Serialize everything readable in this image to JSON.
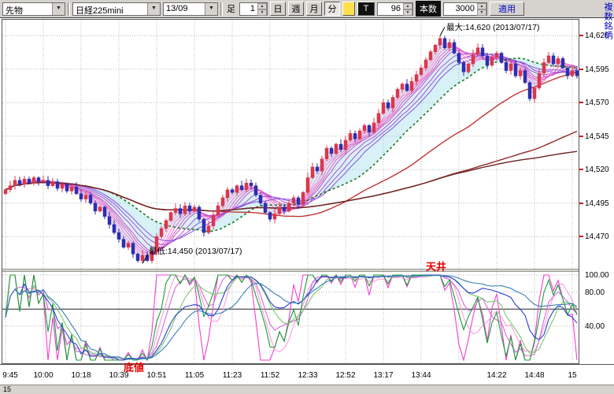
{
  "toolbar": {
    "category": {
      "value": "先物"
    },
    "symbol": {
      "value": "日経225mini"
    },
    "month": {
      "value": "13/09"
    },
    "bar_label": "足",
    "interval_value": "1",
    "period_buttons": [
      "日",
      "週",
      "月",
      "分"
    ],
    "tick_button": "T",
    "bars_value": "96",
    "count_label": "本数",
    "count_value": "3000",
    "apply_label": "適用",
    "multi_symbol": "複数銘柄"
  },
  "annotations": {
    "max_label": "最大:14,620 (2013/07/17)",
    "min_label": "最低:14,450 (2013/07/17)",
    "ceiling_label": "天井",
    "bottom_label": "底値"
  },
  "bottom": {
    "left_label": "15"
  },
  "colors": {
    "toolbar_bg": "#d6d3ce",
    "link_blue": "#0000c8",
    "annotation_red": "#e80000",
    "grid_gray": "#b8b8b8"
  },
  "chart_data": {
    "type": "candlestick+oscillator",
    "instrument": "日経225mini 13/09 1分足",
    "x_labels": [
      "9:45",
      "10:00",
      "10:18",
      "10:39",
      "10:51",
      "11:05",
      "11:23",
      "11:52",
      "12:33",
      "12:52",
      "13:17",
      "13:44",
      "",
      "14:22",
      "14:48",
      "15"
    ],
    "price_axis_labels": [
      "14,620",
      "14,595",
      "14,570",
      "14,545",
      "14,520",
      "14,495",
      "14,470"
    ],
    "price_axis_values": [
      14620,
      14595,
      14570,
      14545,
      14520,
      14495,
      14470
    ],
    "ylim": [
      14446,
      14632
    ],
    "grid": true,
    "closes": [
      14505,
      14508,
      14512,
      14509,
      14513,
      14510,
      14514,
      14511,
      14512,
      14508,
      14511,
      14506,
      14509,
      14504,
      14507,
      14502,
      14498,
      14501,
      14495,
      14489,
      14492,
      14485,
      14479,
      14473,
      14468,
      14462,
      14465,
      14457,
      14452,
      14456,
      14452,
      14459,
      14470,
      14476,
      14482,
      14488,
      14491,
      14487,
      14493,
      14489,
      14492,
      14483,
      14473,
      14478,
      14486,
      14493,
      14499,
      14505,
      14503,
      14508,
      14505,
      14510,
      14508,
      14501,
      14495,
      14488,
      14483,
      14487,
      14492,
      14489,
      14495,
      14499,
      14494,
      14503,
      14514,
      14522,
      14519,
      14528,
      14536,
      14532,
      14539,
      14535,
      14542,
      14547,
      14543,
      14549,
      14553,
      14548,
      14555,
      14562,
      14570,
      14566,
      14574,
      14580,
      14584,
      14579,
      14586,
      14591,
      14596,
      14602,
      14608,
      14613,
      14618,
      14611,
      14615,
      14607,
      14600,
      14593,
      14599,
      14606,
      14611,
      14605,
      14598,
      14604,
      14607,
      14600,
      14594,
      14599,
      14590,
      14594,
      14585,
      14573,
      14581,
      14592,
      14600,
      14605,
      14599,
      14603,
      14596,
      14590,
      14594,
      14590
    ],
    "markers": {
      "max": {
        "index": 92,
        "price": 14620,
        "label": "最大:14,620 (2013/07/17)"
      },
      "min": {
        "index": 29,
        "price": 14450,
        "label": "最低:14,450 (2013/07/17)"
      }
    },
    "candle_up_color": "#d8384c",
    "candle_down_color": "#2c2fb0",
    "ma_ribbon": {
      "periods": [
        2,
        3,
        4,
        5,
        6,
        7,
        8,
        10,
        12,
        14
      ],
      "colors": [
        "#ffc4eb",
        "#ffade3",
        "#ff96db",
        "#f77fd3",
        "#ee69cb",
        "#e058c5",
        "#cf4fca",
        "#b84fd3",
        "#a14fdb",
        "#8b4fe2"
      ]
    },
    "ma_green": {
      "period": 22,
      "color": "#1d7a1d",
      "style": "dotted"
    },
    "ma_slow": [
      {
        "period": 45,
        "color": "#c23333"
      },
      {
        "period": 90,
        "color": "#8f2a2a"
      },
      {
        "period": 170,
        "color": "#6e2222"
      }
    ],
    "cloud_color": "rgba(140,215,230,0.35)",
    "oscillator": {
      "axis_labels": [
        "100.00",
        "80.00",
        "40.00"
      ],
      "axis_values": [
        100,
        80,
        40
      ],
      "solid_level": 60,
      "lines": [
        {
          "period": 9,
          "smooth": 1,
          "color": "#f23fd3"
        },
        {
          "period": 9,
          "smooth": 5,
          "color": "#ff9ae3"
        },
        {
          "period": 17,
          "smooth": 3,
          "color": "#d86ad8"
        },
        {
          "period": 14,
          "smooth": 1,
          "color": "#18a035"
        },
        {
          "period": 20,
          "smooth": 6,
          "color": "#79c96c"
        },
        {
          "period": 30,
          "smooth": 4,
          "color": "#2b3fd0"
        },
        {
          "period": 40,
          "smooth": 8,
          "color": "#3a7fb5"
        }
      ]
    }
  }
}
